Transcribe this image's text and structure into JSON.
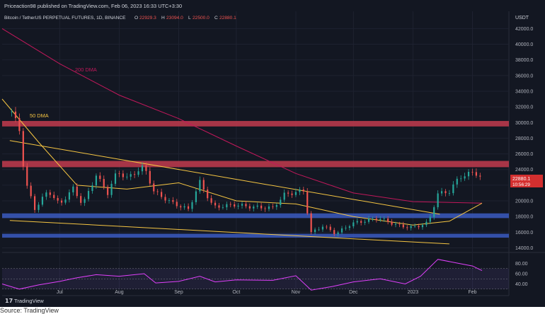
{
  "header": {
    "publisher_line": "Priceaction98 published on TradingView.com, Feb 06, 2023 16:33 UTC+3:30",
    "symbol": "Bitcoin / TetherUS PERPETUAL FUTURES, 1D, BINANCE",
    "ohlc": {
      "o_label": "O",
      "o_value": "22929.3",
      "h_label": "H",
      "h_value": "23094.0",
      "l_label": "L",
      "l_value": "22500.0",
      "c_label": "C",
      "c_value": "22880.1"
    },
    "currency": "USDT"
  },
  "price_tag": {
    "price": "22880.1",
    "countdown": "10:56:29"
  },
  "footer": {
    "brand": "TradingView",
    "source": "Source: TradingView"
  },
  "annotations": {
    "ma200": "200 DMA",
    "ma50": "50 DMA"
  },
  "colors": {
    "background": "#131722",
    "grid": "#1e2230",
    "candle_up": "#26a69a",
    "candle_down": "#ef5350",
    "ma200": "#c2185b",
    "ma50": "#f5c542",
    "trendline": "#f5c542",
    "resistance_zone": "#c23b4e",
    "support_zone": "#3b5bbf",
    "rsi": "#e040fb"
  },
  "chart_data": [
    {
      "type": "candlestick",
      "title": "Bitcoin / TetherUS PERPETUAL FUTURES, 1D, BINANCE",
      "x_axis": {
        "ticks": [
          "Jul",
          "Aug",
          "Sep",
          "Oct",
          "Nov",
          "Dec",
          "2023",
          "Feb"
        ],
        "range": [
          "2022-06-01",
          "2023-02-20"
        ]
      },
      "y_axis": {
        "unit": "USDT",
        "ticks": [
          14000,
          16000,
          18000,
          20000,
          22000,
          24000,
          26000,
          28000,
          30000,
          32000,
          34000,
          36000,
          38000,
          40000,
          42000
        ],
        "range": [
          13500,
          44200
        ]
      },
      "price_path": [
        [
          "2022-06-06",
          31400
        ],
        [
          "2022-06-10",
          29000
        ],
        [
          "2022-06-13",
          22500
        ],
        [
          "2022-06-18",
          19000
        ],
        [
          "2022-06-25",
          21300
        ],
        [
          "2022-07-01",
          19500
        ],
        [
          "2022-07-08",
          21600
        ],
        [
          "2022-07-13",
          19500
        ],
        [
          "2022-07-20",
          23300
        ],
        [
          "2022-07-26",
          21000
        ],
        [
          "2022-07-31",
          23800
        ],
        [
          "2022-08-05",
          22900
        ],
        [
          "2022-08-14",
          24400
        ],
        [
          "2022-08-19",
          21200
        ],
        [
          "2022-08-28",
          19800
        ],
        [
          "2022-09-06",
          18900
        ],
        [
          "2022-09-12",
          22400
        ],
        [
          "2022-09-19",
          19200
        ],
        [
          "2022-09-30",
          19500
        ],
        [
          "2022-10-10",
          19200
        ],
        [
          "2022-10-20",
          19100
        ],
        [
          "2022-10-26",
          20800
        ],
        [
          "2022-11-05",
          21300
        ],
        [
          "2022-11-09",
          15900
        ],
        [
          "2022-11-15",
          16800
        ],
        [
          "2022-11-22",
          15800
        ],
        [
          "2022-11-30",
          17100
        ],
        [
          "2022-12-14",
          17800
        ],
        [
          "2022-12-25",
          16800
        ],
        [
          "2023-01-01",
          16600
        ],
        [
          "2023-01-09",
          17200
        ],
        [
          "2023-01-14",
          20900
        ],
        [
          "2023-01-20",
          21200
        ],
        [
          "2023-01-25",
          23000
        ],
        [
          "2023-02-02",
          23700
        ],
        [
          "2023-02-06",
          22880
        ]
      ],
      "ma200_path": [
        [
          "2022-06-01",
          42000
        ],
        [
          "2022-07-01",
          37500
        ],
        [
          "2022-08-01",
          33500
        ],
        [
          "2022-09-01",
          30500
        ],
        [
          "2022-10-01",
          27000
        ],
        [
          "2022-11-01",
          23500
        ],
        [
          "2022-12-01",
          21000
        ],
        [
          "2023-01-01",
          19900
        ],
        [
          "2023-02-06",
          19700
        ]
      ],
      "ma50_path": [
        [
          "2022-06-01",
          33000
        ],
        [
          "2022-06-20",
          27500
        ],
        [
          "2022-07-10",
          22000
        ],
        [
          "2022-08-05",
          21500
        ],
        [
          "2022-09-01",
          22300
        ],
        [
          "2022-10-01",
          20000
        ],
        [
          "2022-11-01",
          19600
        ],
        [
          "2022-12-01",
          18000
        ],
        [
          "2023-01-01",
          16900
        ],
        [
          "2023-01-20",
          17400
        ],
        [
          "2023-02-06",
          19700
        ]
      ],
      "trendlines": [
        {
          "from": [
            "2022-06-05",
            27700
          ],
          "to": [
            "2023-01-15",
            18300
          ]
        },
        {
          "from": [
            "2022-06-05",
            17500
          ],
          "to": [
            "2023-01-20",
            14500
          ]
        }
      ],
      "zones": [
        {
          "kind": "resistance",
          "low": 29500,
          "high": 30200
        },
        {
          "kind": "resistance",
          "low": 24300,
          "high": 25100
        },
        {
          "kind": "support",
          "low": 17800,
          "high": 18400
        },
        {
          "kind": "support",
          "low": 15300,
          "high": 15800
        }
      ]
    },
    {
      "type": "line",
      "title": "",
      "y_axis": {
        "ticks": [
          80,
          60,
          40
        ],
        "range": [
          20,
          100
        ]
      },
      "rsi_path": [
        [
          "2022-06-01",
          40
        ],
        [
          "2022-06-10",
          30
        ],
        [
          "2022-06-20",
          38
        ],
        [
          "2022-07-01",
          45
        ],
        [
          "2022-07-10",
          52
        ],
        [
          "2022-07-20",
          58
        ],
        [
          "2022-08-01",
          55
        ],
        [
          "2022-08-14",
          60
        ],
        [
          "2022-08-20",
          42
        ],
        [
          "2022-09-01",
          45
        ],
        [
          "2022-09-12",
          55
        ],
        [
          "2022-09-20",
          44
        ],
        [
          "2022-10-01",
          48
        ],
        [
          "2022-10-20",
          47
        ],
        [
          "2022-11-01",
          56
        ],
        [
          "2022-11-09",
          28
        ],
        [
          "2022-11-20",
          35
        ],
        [
          "2022-12-01",
          44
        ],
        [
          "2022-12-15",
          50
        ],
        [
          "2022-12-28",
          40
        ],
        [
          "2023-01-05",
          55
        ],
        [
          "2023-01-14",
          88
        ],
        [
          "2023-01-25",
          80
        ],
        [
          "2023-02-01",
          75
        ],
        [
          "2023-02-06",
          66
        ]
      ]
    }
  ]
}
